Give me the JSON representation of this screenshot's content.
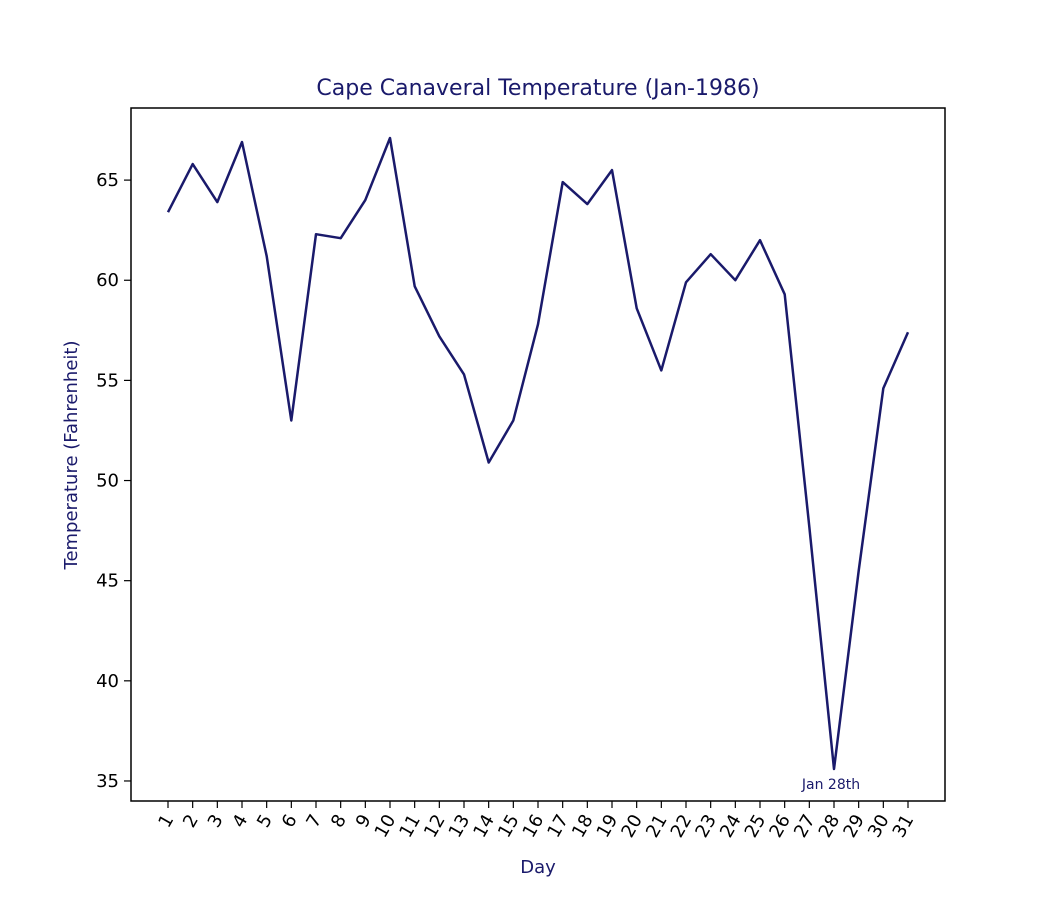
{
  "chart_data": {
    "type": "line",
    "title": "Cape Canaveral Temperature (Jan-1986)",
    "xlabel": "Day",
    "ylabel": "Temperature (Fahrenheit)",
    "x": [
      1,
      2,
      3,
      4,
      5,
      6,
      7,
      8,
      9,
      10,
      11,
      12,
      13,
      14,
      15,
      16,
      17,
      18,
      19,
      20,
      21,
      22,
      23,
      24,
      25,
      26,
      27,
      28,
      29,
      30,
      31
    ],
    "y": [
      63.4,
      65.8,
      63.9,
      66.9,
      61.2,
      53.0,
      62.3,
      62.1,
      64.0,
      67.1,
      59.7,
      57.2,
      55.3,
      50.9,
      53.0,
      57.8,
      64.9,
      63.8,
      65.5,
      58.6,
      55.5,
      59.9,
      61.3,
      60.0,
      62.0,
      59.3,
      47.7,
      35.6,
      45.5,
      54.6,
      57.4
    ],
    "xticks": [
      "1",
      "2",
      "3",
      "4",
      "5",
      "6",
      "7",
      "8",
      "9",
      "10",
      "11",
      "12",
      "13",
      "14",
      "15",
      "16",
      "17",
      "18",
      "19",
      "20",
      "21",
      "22",
      "23",
      "24",
      "25",
      "26",
      "27",
      "28",
      "29",
      "30",
      "31"
    ],
    "yticks": [
      35,
      40,
      45,
      50,
      55,
      60,
      65
    ],
    "xlim": [
      -0.5,
      32.5
    ],
    "ylim": [
      34.0,
      68.6
    ],
    "grid": false,
    "line_color": "#1a1a6b",
    "text_color": "#1a1a6b",
    "annotations": [
      {
        "text": "Jan 28th",
        "x": 28,
        "y": 35.6
      }
    ]
  }
}
